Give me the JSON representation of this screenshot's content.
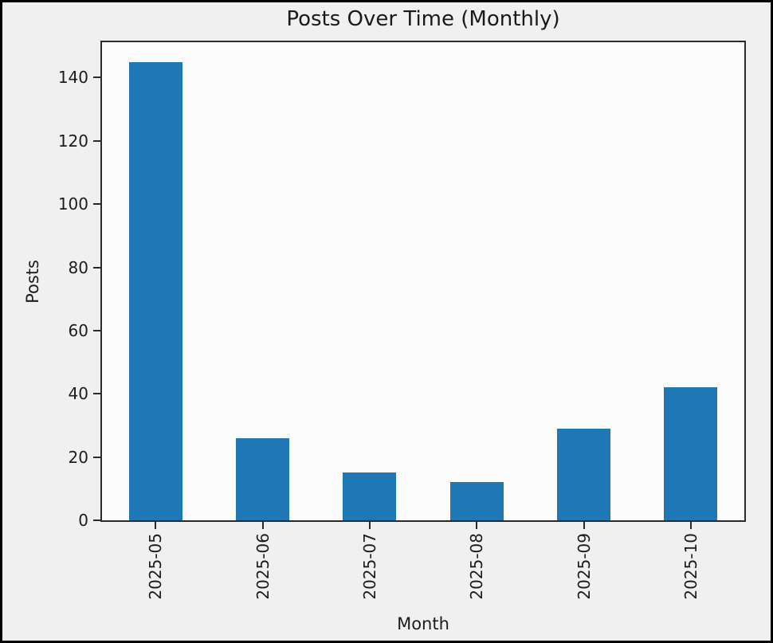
{
  "figure": {
    "border_color": "#000000",
    "background_color": "#f0f0f0",
    "plot_background_color": "#fbfbfb",
    "spine_color": "#2a2a2a",
    "text_color": "#1c1c1c"
  },
  "chart_data": {
    "type": "bar",
    "title": "Posts Over Time (Monthly)",
    "xlabel": "Month",
    "ylabel": "Posts",
    "categories": [
      "2025-05",
      "2025-06",
      "2025-07",
      "2025-08",
      "2025-09",
      "2025-10"
    ],
    "values": [
      145,
      26,
      15,
      12,
      29,
      42
    ],
    "bar_color": "#1f77b4",
    "bar_width_fraction": 0.5,
    "ylim": [
      0,
      151.2
    ],
    "yticks": [
      0,
      20,
      40,
      60,
      80,
      100,
      120,
      140
    ],
    "x_tick_rotation": 90,
    "grid": false,
    "legend": "none"
  }
}
